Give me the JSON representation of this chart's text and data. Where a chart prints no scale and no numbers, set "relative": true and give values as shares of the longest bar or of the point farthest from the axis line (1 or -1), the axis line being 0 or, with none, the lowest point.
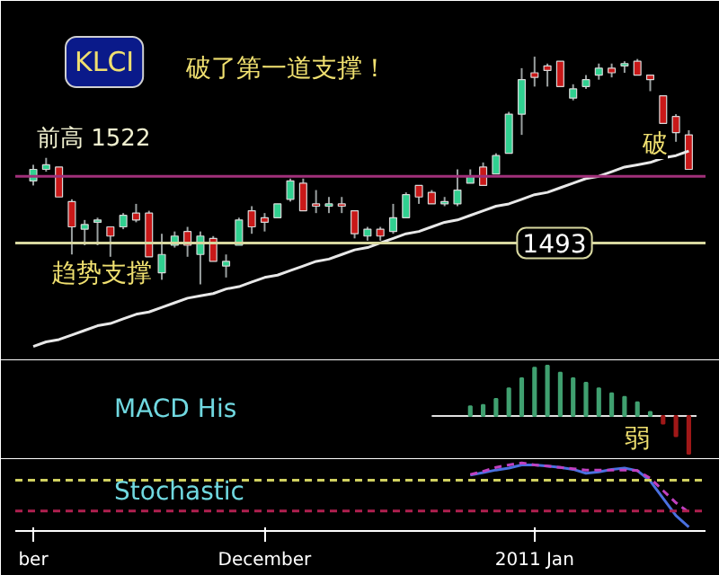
{
  "chart_data": [
    {
      "type": "candlestick",
      "title": "KLCI",
      "subtitle": "破了第一道支撑！",
      "tick_labels": false,
      "ylim": [
        1442,
        1592
      ],
      "categories": [
        null,
        null,
        null,
        null,
        null,
        null,
        null,
        null,
        null,
        null,
        null,
        null,
        null,
        null,
        null,
        null,
        null,
        null,
        null,
        null,
        null,
        null,
        null,
        null,
        null,
        null,
        null,
        null,
        null,
        null,
        null,
        null,
        null,
        null,
        null,
        null,
        null,
        null,
        null,
        null,
        null,
        null,
        null,
        null,
        null,
        null,
        null,
        null,
        null,
        null,
        null,
        null
      ],
      "ohlc": [
        [
          1520,
          1527,
          1518,
          1525
        ],
        [
          1525,
          1530,
          1524,
          1527
        ],
        [
          1526,
          1526,
          1513,
          1513
        ],
        [
          1511,
          1512,
          1488,
          1500
        ],
        [
          1499,
          1503,
          1492,
          1501
        ],
        [
          1502,
          1504,
          1492,
          1503
        ],
        [
          1500,
          1500,
          1487,
          1496
        ],
        [
          1500,
          1506,
          1499,
          1505
        ],
        [
          1506,
          1510,
          1502,
          1503
        ],
        [
          1506,
          1507,
          1487,
          1487
        ],
        [
          1480,
          1497,
          1477,
          1488
        ],
        [
          1492,
          1498,
          1491,
          1496
        ],
        [
          1498,
          1500,
          1487,
          1492
        ],
        [
          1488,
          1498,
          1475,
          1496
        ],
        [
          1495,
          1496,
          1485,
          1485
        ],
        [
          1483,
          1488,
          1478,
          1485
        ],
        [
          1492,
          1504,
          1492,
          1503
        ],
        [
          1507,
          1509,
          1497,
          1500
        ],
        [
          1504,
          1506,
          1498,
          1502
        ],
        [
          1504,
          1510,
          1504,
          1510
        ],
        [
          1512,
          1521,
          1511,
          1520
        ],
        [
          1519,
          1521,
          1507,
          1507
        ],
        [
          1510,
          1516,
          1506,
          1509
        ],
        [
          1509,
          1513,
          1506,
          1510
        ],
        [
          1510,
          1513,
          1506,
          1509
        ],
        [
          1507,
          1507,
          1495,
          1497
        ],
        [
          1496,
          1500,
          1494,
          1499
        ],
        [
          1499,
          1500,
          1494,
          1496
        ],
        [
          1498,
          1510,
          1497,
          1504
        ],
        [
          1504,
          1515,
          1504,
          1514
        ],
        [
          1518,
          1518,
          1510,
          1513
        ],
        [
          1515,
          1516,
          1510,
          1510
        ],
        [
          1510,
          1513,
          1509,
          1511
        ],
        [
          1510,
          1525,
          1509,
          1516
        ],
        [
          1519,
          1525,
          1519,
          1522
        ],
        [
          1526,
          1528,
          1518,
          1518
        ],
        [
          1523,
          1532,
          1523,
          1531
        ],
        [
          1532,
          1550,
          1532,
          1549
        ],
        [
          1549,
          1569,
          1540,
          1564
        ],
        [
          1567,
          1574,
          1561,
          1565
        ],
        [
          1570,
          1571,
          1561,
          1568
        ],
        [
          1572,
          1572,
          1561,
          1561
        ],
        [
          1556,
          1562,
          1555,
          1560
        ],
        [
          1561,
          1566,
          1560,
          1564
        ],
        [
          1566,
          1571,
          1564,
          1569
        ],
        [
          1569,
          1571,
          1565,
          1567
        ],
        [
          1570,
          1572,
          1567,
          1571
        ],
        [
          1572,
          1573,
          1566,
          1566
        ],
        [
          1566,
          1566,
          1559,
          1564
        ],
        [
          1557,
          1557,
          1545,
          1545
        ],
        [
          1548,
          1549,
          1537,
          1541
        ],
        [
          1540,
          1542,
          1525,
          1525
        ]
      ],
      "colors": [
        "#30d090",
        "#30d090",
        "#c81818",
        "#c81818",
        "#30d090",
        "#30d090",
        "#c81818",
        "#30d090",
        "#c81818",
        "#c81818",
        "#30d090",
        "#30d090",
        "#c81818",
        "#30d090",
        "#c81818",
        "#30d090",
        "#30d090",
        "#c81818",
        "#c81818",
        "#30d090",
        "#30d090",
        "#c81818",
        "#c81818",
        "#30d090",
        "#c81818",
        "#c81818",
        "#30d090",
        "#c81818",
        "#30d090",
        "#30d090",
        "#c81818",
        "#c81818",
        "#30d090",
        "#30d090",
        "#30d090",
        "#c81818",
        "#30d090",
        "#30d090",
        "#30d090",
        "#c81818",
        "#c81818",
        "#c81818",
        "#30d090",
        "#30d090",
        "#30d090",
        "#c81818",
        "#30d090",
        "#c81818",
        "#c81818",
        "#c81818",
        "#c81818",
        "#c81818"
      ],
      "series": [
        {
          "type": "line",
          "color": "#e8e8e8",
          "values": [
            1448,
            1450,
            1451,
            1453,
            1455,
            1457,
            1458,
            1460,
            1462,
            1463,
            1465,
            1467,
            1469,
            1470,
            1471,
            1473,
            1474,
            1476,
            1478,
            1479,
            1481,
            1483,
            1485,
            1486,
            1488,
            1490,
            1491,
            1493,
            1495,
            1497,
            1498,
            1500,
            1502,
            1503,
            1505,
            1507,
            1509,
            1510,
            1512,
            1514,
            1515,
            1517,
            1519,
            1521,
            1522,
            1524,
            1526,
            1527,
            1528,
            1530,
            1531,
            1533
          ]
        }
      ],
      "ref_lines": [
        {
          "axis": "y",
          "value": 1522,
          "label": "前高 1522",
          "color": "#a0307a"
        },
        {
          "axis": "y",
          "value": 1493,
          "label": "1493",
          "color": "#d8d8a0"
        }
      ],
      "annotations": [
        "破",
        "趋势支撑"
      ]
    },
    {
      "type": "bar",
      "title": "MACD His",
      "relative": true,
      "tick_labels": false,
      "categories": [
        null,
        null,
        null,
        null,
        null,
        null,
        null,
        null,
        null,
        null,
        null,
        null,
        null,
        null,
        null,
        null,
        null,
        null,
        null,
        null,
        null,
        null,
        null,
        null,
        null,
        null,
        null,
        null,
        null,
        null,
        null,
        null,
        null,
        null,
        null,
        null,
        null,
        null,
        null,
        null,
        null,
        null,
        null,
        null,
        null,
        null,
        null,
        null,
        null,
        null,
        null,
        null
      ],
      "values": [
        null,
        null,
        null,
        null,
        null,
        null,
        null,
        null,
        null,
        null,
        null,
        null,
        null,
        null,
        null,
        null,
        null,
        null,
        null,
        null,
        null,
        null,
        null,
        null,
        null,
        null,
        null,
        null,
        null,
        null,
        null,
        null,
        null,
        null,
        0.19,
        0.22,
        0.34,
        0.55,
        0.75,
        0.96,
        1,
        0.86,
        0.75,
        0.66,
        0.55,
        0.45,
        0.38,
        0.27,
        0.08,
        -0.15,
        -0.4,
        -0.75
      ],
      "colors": [
        null,
        null,
        null,
        null,
        null,
        null,
        null,
        null,
        null,
        null,
        null,
        null,
        null,
        null,
        null,
        null,
        null,
        null,
        null,
        null,
        null,
        null,
        null,
        null,
        null,
        null,
        null,
        null,
        null,
        null,
        null,
        null,
        null,
        null,
        "#40a070",
        "#40a070",
        "#40a070",
        "#40a070",
        "#40a070",
        "#40a070",
        "#40a070",
        "#40a070",
        "#40a070",
        "#40a070",
        "#40a070",
        "#40a070",
        "#40a070",
        "#40a070",
        "#40a070",
        "#a01818",
        "#a01818",
        "#a01818"
      ],
      "ref_lines": [
        {
          "axis": "y",
          "value": 0,
          "color": "#e0e0e0"
        }
      ],
      "annotations": [
        "弱"
      ]
    },
    {
      "type": "line",
      "title": "Stochastic",
      "relative": true,
      "categories": [
        "ber",
        null,
        null,
        null,
        null,
        null,
        null,
        null,
        null,
        null,
        null,
        null,
        null,
        null,
        null,
        null,
        null,
        null,
        "December",
        null,
        null,
        null,
        null,
        null,
        null,
        null,
        null,
        null,
        null,
        null,
        null,
        null,
        null,
        null,
        null,
        null,
        null,
        null,
        null,
        "2011 Jan",
        null,
        null,
        null,
        null,
        null,
        null,
        null,
        null,
        null,
        null,
        null,
        null
      ],
      "series": [
        {
          "color": "#4a70e0",
          "line_style": "solid",
          "values": [
            null,
            null,
            null,
            null,
            null,
            null,
            null,
            null,
            null,
            null,
            null,
            null,
            null,
            null,
            null,
            null,
            null,
            null,
            null,
            null,
            null,
            null,
            null,
            null,
            null,
            null,
            null,
            null,
            null,
            null,
            null,
            null,
            null,
            null,
            0.81,
            0.85,
            0.89,
            0.92,
            0.97,
            0.97,
            0.95,
            0.93,
            0.9,
            0.84,
            0.86,
            0.9,
            0.92,
            0.88,
            0.72,
            0.45,
            0.18,
            0
          ]
        },
        {
          "color": "#c040c0",
          "line_style": "dashed",
          "values": [
            null,
            null,
            null,
            null,
            null,
            null,
            null,
            null,
            null,
            null,
            null,
            null,
            null,
            null,
            null,
            null,
            null,
            null,
            null,
            null,
            null,
            null,
            null,
            null,
            null,
            null,
            null,
            null,
            null,
            null,
            null,
            null,
            null,
            null,
            0.82,
            0.87,
            0.93,
            0.97,
            1.0,
            0.97,
            0.95,
            0.93,
            0.91,
            0.89,
            0.89,
            0.89,
            0.89,
            0.88,
            0.76,
            0.57,
            0.38,
            0.23
          ]
        }
      ],
      "ref_lines": [
        {
          "axis": "y",
          "value": 0.73,
          "color": "#d0d060",
          "line_style": "dashed"
        },
        {
          "axis": "y",
          "value": 0.25,
          "color": "#b02050",
          "line_style": "dashed"
        }
      ]
    }
  ]
}
